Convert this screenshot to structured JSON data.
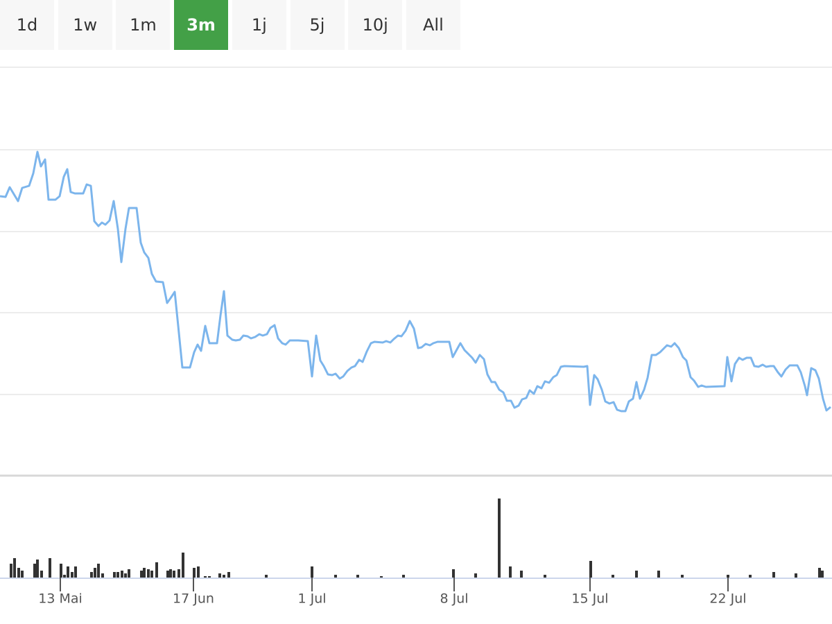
{
  "range_selector": {
    "buttons": [
      "1d",
      "1w",
      "1m",
      "3m",
      "1j",
      "5j",
      "10j",
      "All"
    ],
    "selected": 3
  },
  "chart_data": [
    {
      "type": "line",
      "color": "#7cb5ec",
      "xlim": [
        0,
        1200
      ],
      "ylim": [
        0,
        589
      ],
      "yticks": [
        0,
        117,
        235,
        352,
        470,
        589
      ],
      "grid": true,
      "x": [
        0,
        8,
        14,
        20,
        26,
        32,
        42,
        48,
        54,
        59,
        65,
        70,
        80,
        86,
        92,
        97,
        102,
        108,
        120,
        125,
        131,
        136,
        142,
        147,
        152,
        158,
        164,
        170,
        175,
        181,
        186,
        197,
        203,
        208,
        214,
        219,
        225,
        235,
        241,
        246,
        252,
        257,
        263,
        274,
        280,
        285,
        290,
        296,
        302,
        313,
        318,
        323,
        328,
        335,
        340,
        346,
        351,
        357,
        362,
        368,
        374,
        379,
        385,
        390,
        396,
        401,
        407,
        412,
        418,
        430,
        444,
        450,
        456,
        462,
        467,
        473,
        479,
        484,
        490,
        495,
        501,
        507,
        512,
        518,
        523,
        529,
        535,
        540,
        552,
        557,
        563,
        568,
        574,
        579,
        585,
        591,
        597,
        603,
        608,
        614,
        620,
        625,
        631,
        648,
        653,
        659,
        664,
        670,
        676,
        681,
        686,
        692,
        698,
        703,
        709,
        714,
        720,
        726,
        731,
        737,
        742,
        748,
        753,
        759,
        764,
        770,
        775,
        781,
        786,
        792,
        798,
        803,
        809,
        814,
        842,
        847,
        851,
        857,
        862,
        868,
        873,
        879,
        885,
        890,
        896,
        902,
        907,
        913,
        918,
        923,
        929,
        934,
        940,
        946,
        952,
        957,
        962,
        968,
        973,
        979,
        985,
        990,
        996,
        1001,
        1007,
        1012,
        1018,
        1045,
        1049,
        1055,
        1060,
        1066,
        1071,
        1077,
        1083,
        1088,
        1094,
        1100,
        1105,
        1111,
        1116,
        1122,
        1127,
        1133,
        1139,
        1150,
        1155,
        1161,
        1164,
        1170,
        1176,
        1181,
        1187,
        1192,
        1198
      ],
      "values": [
        403,
        402,
        416,
        406,
        396,
        415,
        418,
        436,
        467,
        446,
        456,
        398,
        398,
        403,
        431,
        442,
        409,
        407,
        407,
        420,
        418,
        367,
        360,
        365,
        362,
        368,
        396,
        356,
        308,
        356,
        386,
        386,
        336,
        322,
        314,
        291,
        280,
        279,
        249,
        256,
        265,
        216,
        156,
        156,
        178,
        189,
        180,
        216,
        191,
        191,
        231,
        266,
        202,
        196,
        195,
        196,
        202,
        201,
        198,
        200,
        204,
        202,
        204,
        213,
        217,
        198,
        191,
        189,
        195,
        195,
        194,
        143,
        202,
        166,
        158,
        146,
        145,
        147,
        140,
        143,
        151,
        156,
        158,
        167,
        164,
        179,
        191,
        193,
        192,
        194,
        192,
        197,
        202,
        201,
        209,
        223,
        212,
        184,
        185,
        190,
        188,
        191,
        193,
        193,
        171,
        182,
        191,
        181,
        175,
        170,
        163,
        174,
        168,
        146,
        135,
        135,
        124,
        120,
        108,
        108,
        98,
        101,
        110,
        112,
        123,
        118,
        129,
        126,
        136,
        134,
        142,
        145,
        157,
        158,
        157,
        158,
        102,
        145,
        139,
        124,
        107,
        104,
        106,
        95,
        93,
        93,
        107,
        111,
        135,
        111,
        124,
        141,
        174,
        174,
        178,
        183,
        188,
        186,
        191,
        184,
        171,
        166,
        142,
        137,
        128,
        130,
        128,
        129,
        171,
        136,
        161,
        170,
        167,
        170,
        170,
        158,
        157,
        160,
        157,
        158,
        158,
        149,
        143,
        153,
        159,
        159,
        149,
        129,
        116,
        155,
        152,
        140,
        111,
        94,
        99
      ]
    },
    {
      "type": "bar",
      "color": "#333333",
      "xlim": [
        0,
        1200
      ],
      "ylim": [
        0,
        113
      ],
      "xticks": [
        {
          "value": 87,
          "label": "13 Mai"
        },
        {
          "value": 279,
          "label": "17 Jun"
        },
        {
          "value": 450,
          "label": "1 Jul"
        },
        {
          "value": 655,
          "label": "8 Jul"
        },
        {
          "value": 851,
          "label": "15 Jul"
        },
        {
          "value": 1050,
          "label": "22 Jul"
        }
      ],
      "x": [
        16,
        21,
        27,
        32,
        50,
        54,
        60,
        72,
        88,
        93,
        98,
        104,
        109,
        132,
        137,
        142,
        148,
        165,
        170,
        176,
        181,
        186,
        204,
        208,
        214,
        219,
        226,
        242,
        246,
        251,
        258,
        264,
        280,
        286,
        296,
        302,
        317,
        323,
        330,
        384,
        450,
        484,
        516,
        550,
        582,
        654,
        686,
        720,
        736,
        752,
        786,
        852,
        884,
        918,
        950,
        984,
        1050,
        1082,
        1116,
        1148,
        1182,
        1186
      ],
      "values": [
        20,
        28,
        14,
        10,
        20,
        26,
        10,
        28,
        20,
        4,
        16,
        8,
        16,
        8,
        14,
        20,
        6,
        8,
        8,
        10,
        6,
        12,
        10,
        14,
        12,
        10,
        22,
        10,
        12,
        10,
        12,
        36,
        14,
        16,
        2,
        2,
        6,
        4,
        8,
        4,
        16,
        4,
        4,
        2,
        4,
        12,
        6,
        114,
        16,
        10,
        4,
        24,
        4,
        10,
        10,
        4,
        4,
        4,
        8,
        6,
        14,
        10
      ]
    }
  ]
}
